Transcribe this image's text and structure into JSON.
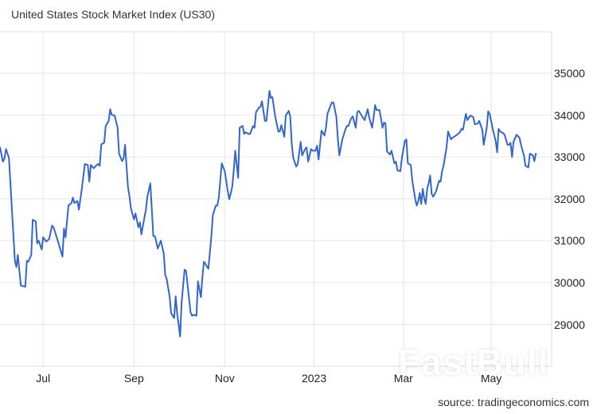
{
  "header": {
    "title": "United States Stock Market Index (US30)"
  },
  "footer": {
    "source": "source: tradingeconomics.com"
  },
  "watermark": {
    "text": "FastBull"
  },
  "colors": {
    "line": "#3366cc",
    "grid": "#e6e6e6",
    "text": "#333333"
  },
  "chart_data": {
    "type": "line",
    "title": "United States Stock Market Index (US30)",
    "xlabel": "",
    "ylabel": "",
    "x_unit": "days since 2022-06-02",
    "x_domain": [
      0,
      370.6
    ],
    "ylim": [
      28400,
      35900
    ],
    "yticks": [
      29000,
      30000,
      31000,
      32000,
      33000,
      34000,
      35000
    ],
    "xticks": [
      {
        "label": "Jul",
        "day": 29
      },
      {
        "label": "Sep",
        "day": 90
      },
      {
        "label": "Nov",
        "day": 151
      },
      {
        "label": "2023",
        "day": 211
      },
      {
        "label": "Mar",
        "day": 271
      },
      {
        "label": "May",
        "day": 330
      }
    ],
    "grid": true,
    "legend": null,
    "series": [
      {
        "name": "US30",
        "points": [
          [
            0,
            33230
          ],
          [
            2,
            32890
          ],
          [
            3,
            32960
          ],
          [
            4,
            33190
          ],
          [
            6,
            32980
          ],
          [
            7,
            32370
          ],
          [
            10,
            30520
          ],
          [
            11,
            30370
          ],
          [
            12,
            30660
          ],
          [
            14,
            29930
          ],
          [
            17,
            29900
          ],
          [
            18,
            30520
          ],
          [
            19,
            30500
          ],
          [
            21,
            30660
          ],
          [
            22,
            31500
          ],
          [
            24,
            31460
          ],
          [
            25,
            30940
          ],
          [
            26,
            31000
          ],
          [
            28,
            30790
          ],
          [
            29,
            31080
          ],
          [
            31,
            30980
          ],
          [
            33,
            31040
          ],
          [
            35,
            31360
          ],
          [
            36,
            31320
          ],
          [
            39,
            30980
          ],
          [
            42,
            30620
          ],
          [
            43,
            31290
          ],
          [
            44,
            31080
          ],
          [
            46,
            31840
          ],
          [
            48,
            31900
          ],
          [
            49,
            32030
          ],
          [
            50,
            31900
          ],
          [
            52,
            31950
          ],
          [
            53,
            31740
          ],
          [
            55,
            32240
          ],
          [
            57,
            32830
          ],
          [
            59,
            32810
          ],
          [
            60,
            32410
          ],
          [
            61,
            32810
          ],
          [
            63,
            32730
          ],
          [
            65,
            32810
          ],
          [
            66,
            32830
          ],
          [
            67,
            32790
          ],
          [
            68,
            33300
          ],
          [
            70,
            33340
          ],
          [
            71,
            33740
          ],
          [
            73,
            33860
          ],
          [
            74,
            34140
          ],
          [
            75,
            34010
          ],
          [
            77,
            33990
          ],
          [
            79,
            33700
          ],
          [
            80,
            33080
          ],
          [
            82,
            32900
          ],
          [
            83,
            32960
          ],
          [
            84,
            33290
          ],
          [
            86,
            32280
          ],
          [
            87,
            32050
          ],
          [
            88,
            31760
          ],
          [
            90,
            31510
          ],
          [
            91,
            31650
          ],
          [
            93,
            31320
          ],
          [
            94,
            31440
          ],
          [
            95,
            31150
          ],
          [
            97,
            31550
          ],
          [
            98,
            31740
          ],
          [
            99,
            32050
          ],
          [
            101,
            32370
          ],
          [
            103,
            31110
          ],
          [
            104,
            31110
          ],
          [
            105,
            30980
          ],
          [
            106,
            30810
          ],
          [
            108,
            31000
          ],
          [
            110,
            30700
          ],
          [
            111,
            30180
          ],
          [
            112,
            30090
          ],
          [
            114,
            29650
          ],
          [
            115,
            29270
          ],
          [
            117,
            29150
          ],
          [
            118,
            29670
          ],
          [
            119,
            29270
          ],
          [
            121,
            28710
          ],
          [
            122,
            29510
          ],
          [
            124,
            30310
          ],
          [
            125,
            30280
          ],
          [
            126,
            29950
          ],
          [
            128,
            29290
          ],
          [
            129,
            29210
          ],
          [
            130,
            29230
          ],
          [
            132,
            29210
          ],
          [
            133,
            30030
          ],
          [
            135,
            29650
          ],
          [
            136,
            30140
          ],
          [
            137,
            30500
          ],
          [
            140,
            30330
          ],
          [
            142,
            31100
          ],
          [
            143,
            31610
          ],
          [
            145,
            31840
          ],
          [
            146,
            31840
          ],
          [
            147,
            32030
          ],
          [
            149,
            32850
          ],
          [
            150,
            32750
          ],
          [
            151,
            32660
          ],
          [
            153,
            32180
          ],
          [
            154,
            31990
          ],
          [
            156,
            32280
          ],
          [
            157,
            32660
          ],
          [
            158,
            33150
          ],
          [
            160,
            32500
          ],
          [
            161,
            33700
          ],
          [
            163,
            33740
          ],
          [
            164,
            33550
          ],
          [
            165,
            33590
          ],
          [
            167,
            33550
          ],
          [
            168,
            33550
          ],
          [
            170,
            33740
          ],
          [
            171,
            33700
          ],
          [
            172,
            34070
          ],
          [
            174,
            34180
          ],
          [
            175,
            34200
          ],
          [
            176,
            34330
          ],
          [
            178,
            33860
          ],
          [
            179,
            33860
          ],
          [
            181,
            34580
          ],
          [
            182,
            34410
          ],
          [
            183,
            34430
          ],
          [
            185,
            33950
          ],
          [
            187,
            33610
          ],
          [
            188,
            33610
          ],
          [
            189,
            33760
          ],
          [
            191,
            33480
          ],
          [
            192,
            33990
          ],
          [
            194,
            34100
          ],
          [
            195,
            33970
          ],
          [
            196,
            33320
          ],
          [
            197,
            32980
          ],
          [
            199,
            32770
          ],
          [
            200,
            32830
          ],
          [
            202,
            33360
          ],
          [
            203,
            33040
          ],
          [
            205,
            33190
          ],
          [
            206,
            33230
          ],
          [
            207,
            32890
          ],
          [
            209,
            33190
          ],
          [
            210,
            33150
          ],
          [
            212,
            33150
          ],
          [
            213,
            33270
          ],
          [
            214,
            32940
          ],
          [
            216,
            33630
          ],
          [
            218,
            33510
          ],
          [
            219,
            33700
          ],
          [
            220,
            34030
          ],
          [
            222,
            34220
          ],
          [
            223,
            34300
          ],
          [
            224,
            34300
          ],
          [
            226,
            33950
          ],
          [
            227,
            33420
          ],
          [
            228,
            33040
          ],
          [
            230,
            33420
          ],
          [
            232,
            33650
          ],
          [
            233,
            33740
          ],
          [
            234,
            33740
          ],
          [
            236,
            33930
          ],
          [
            237,
            33970
          ],
          [
            239,
            33700
          ],
          [
            240,
            34070
          ],
          [
            241,
            34100
          ],
          [
            242,
            34050
          ],
          [
            244,
            33930
          ],
          [
            245,
            33880
          ],
          [
            247,
            34140
          ],
          [
            248,
            33950
          ],
          [
            250,
            33700
          ],
          [
            251,
            33950
          ],
          [
            252,
            34240
          ],
          [
            253,
            34120
          ],
          [
            255,
            34120
          ],
          [
            257,
            33700
          ],
          [
            258,
            33820
          ],
          [
            259,
            33800
          ],
          [
            260,
            33130
          ],
          [
            262,
            33060
          ],
          [
            263,
            33150
          ],
          [
            265,
            32850
          ],
          [
            266,
            32890
          ],
          [
            267,
            32680
          ],
          [
            269,
            32660
          ],
          [
            270,
            32980
          ],
          [
            272,
            33380
          ],
          [
            273,
            33420
          ],
          [
            274,
            32850
          ],
          [
            276,
            32810
          ],
          [
            277,
            32430
          ],
          [
            279,
            31990
          ],
          [
            280,
            31840
          ],
          [
            281,
            31950
          ],
          [
            282,
            32140
          ],
          [
            283,
            31880
          ],
          [
            284,
            32240
          ],
          [
            285,
            32010
          ],
          [
            286,
            31880
          ],
          [
            287,
            32240
          ],
          [
            288,
            32370
          ],
          [
            289,
            32560
          ],
          [
            290,
            32120
          ],
          [
            291,
            32050
          ],
          [
            293,
            32180
          ],
          [
            294,
            32310
          ],
          [
            295,
            32430
          ],
          [
            296,
            32410
          ],
          [
            297,
            32660
          ],
          [
            298,
            32790
          ],
          [
            300,
            33230
          ],
          [
            301,
            33610
          ],
          [
            303,
            33420
          ],
          [
            304,
            33460
          ],
          [
            305,
            33480
          ],
          [
            307,
            33530
          ],
          [
            309,
            33590
          ],
          [
            310,
            33670
          ],
          [
            311,
            33650
          ],
          [
            313,
            34030
          ],
          [
            314,
            33880
          ],
          [
            316,
            33990
          ],
          [
            318,
            33950
          ],
          [
            319,
            33780
          ],
          [
            321,
            33800
          ],
          [
            322,
            33860
          ],
          [
            324,
            33650
          ],
          [
            325,
            33290
          ],
          [
            327,
            33700
          ],
          [
            328,
            34090
          ],
          [
            329,
            34030
          ],
          [
            331,
            33670
          ],
          [
            333,
            33380
          ],
          [
            334,
            33110
          ],
          [
            335,
            33670
          ],
          [
            336,
            33610
          ],
          [
            338,
            33570
          ],
          [
            339,
            33530
          ],
          [
            341,
            33290
          ],
          [
            342,
            33290
          ],
          [
            343,
            33340
          ],
          [
            344,
            33000
          ],
          [
            345,
            33360
          ],
          [
            347,
            33530
          ],
          [
            349,
            33460
          ],
          [
            350,
            33290
          ],
          [
            352,
            33040
          ],
          [
            353,
            32790
          ],
          [
            355,
            32750
          ],
          [
            356,
            33080
          ],
          [
            358,
            33040
          ],
          [
            359,
            32900
          ],
          [
            360,
            33080
          ]
        ]
      }
    ]
  }
}
